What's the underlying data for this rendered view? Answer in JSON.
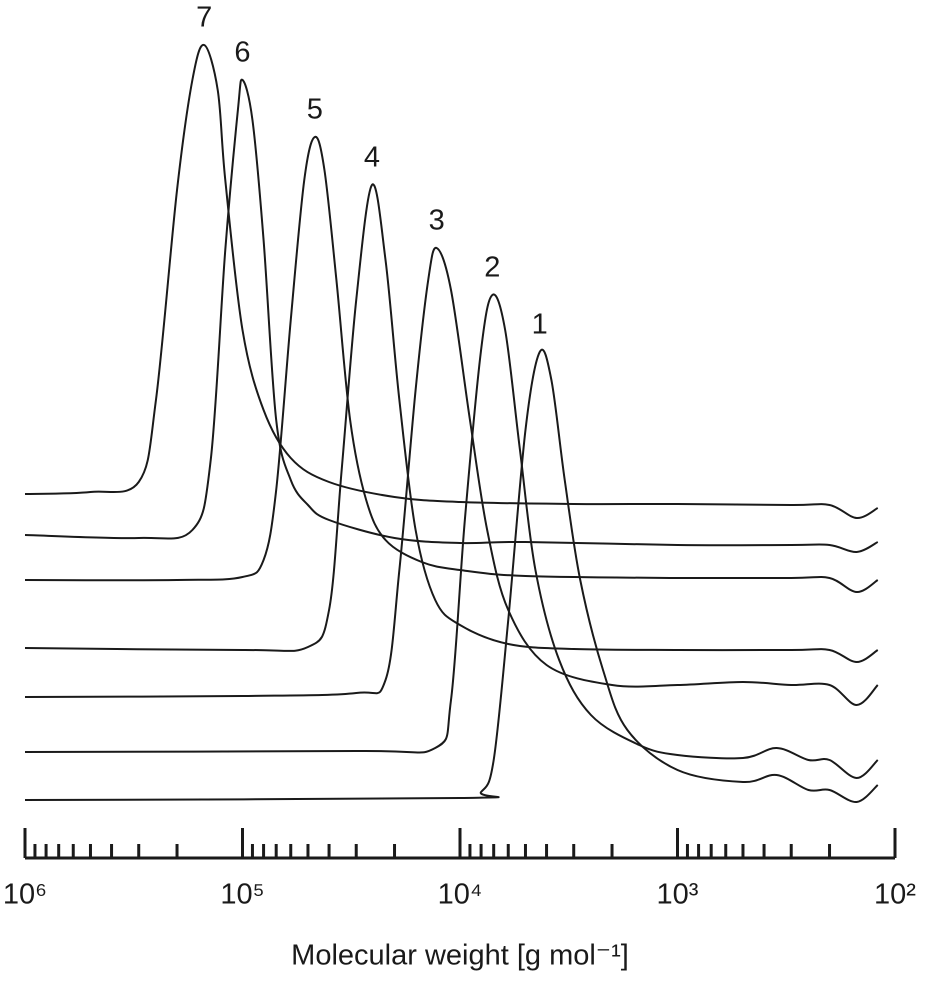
{
  "chart_data": {
    "type": "line",
    "x_label": "Molecular weight [g mol⁻¹]",
    "xscale": "log",
    "xlim": [
      1000000,
      100
    ],
    "xticks": [
      {
        "value": 1000000,
        "label": "10⁶"
      },
      {
        "value": 100000,
        "label": "10⁵"
      },
      {
        "value": 10000,
        "label": "10⁴"
      },
      {
        "value": 1000,
        "label": "10³"
      },
      {
        "value": 100,
        "label": "10²"
      }
    ],
    "x_minor_ticks": [
      900000,
      800000,
      700000,
      600000,
      500000,
      400000,
      300000,
      200000,
      90000,
      80000,
      70000,
      60000,
      50000,
      40000,
      30000,
      20000,
      9000,
      8000,
      7000,
      6000,
      5000,
      4000,
      3000,
      2000,
      900,
      800,
      700,
      600,
      500,
      400,
      300,
      200
    ],
    "ylim": [
      0,
      800
    ],
    "grid": false,
    "color": "#1a1a1a",
    "series": [
      {
        "name": "1",
        "x": [
          1000000,
          10000,
          8000,
          7000,
          6000,
          5000,
          4300,
          3800,
          3300,
          2800,
          2200,
          1700,
          1000,
          500,
          350,
          250,
          200,
          150,
          120
        ],
        "values": [
          20,
          22,
          28,
          60,
          200,
          390,
          468,
          440,
          340,
          240,
          150,
          90,
          50,
          38,
          45,
          30,
          30,
          18,
          35
        ]
      },
      {
        "name": "2",
        "x": [
          1000000,
          30000,
          13000,
          11000,
          9500,
          8000,
          7100,
          6200,
          5300,
          4500,
          3500,
          2500,
          1500,
          1000,
          500,
          350,
          250,
          200,
          150,
          120
        ],
        "values": [
          68,
          69,
          72,
          120,
          300,
          470,
          525,
          490,
          370,
          250,
          160,
          105,
          75,
          65,
          62,
          72,
          60,
          60,
          42,
          60
        ]
      },
      {
        "name": "3",
        "x": [
          1000000,
          100000,
          30000,
          22000,
          19000,
          16000,
          14000,
          12800,
          11000,
          9000,
          7500,
          6000,
          4000,
          2000,
          1000,
          500,
          300,
          200,
          150,
          120
        ],
        "values": [
          123,
          124,
          127,
          140,
          250,
          430,
          540,
          572,
          530,
          400,
          290,
          210,
          155,
          135,
          135,
          138,
          135,
          135,
          115,
          135
        ]
      },
      {
        "name": "4",
        "x": [
          1000000,
          100000,
          50000,
          40000,
          35000,
          30000,
          25400,
          22000,
          19000,
          16000,
          13000,
          10000,
          6000,
          3000,
          1000,
          300,
          200,
          150,
          120
        ],
        "values": [
          172,
          170,
          173,
          210,
          350,
          520,
          635,
          560,
          420,
          290,
          220,
          195,
          176,
          171,
          170,
          170,
          170,
          158,
          170
        ]
      },
      {
        "name": "5",
        "x": [
          1000000,
          200000,
          100000,
          80000,
          70000,
          60000,
          52000,
          46500,
          42000,
          37000,
          32000,
          27000,
          22000,
          15000,
          10000,
          5000,
          1000,
          300,
          200,
          150,
          120
        ],
        "values": [
          240,
          240,
          243,
          260,
          330,
          500,
          640,
          683,
          650,
          540,
          400,
          320,
          280,
          258,
          250,
          244,
          242,
          242,
          242,
          228,
          240
        ]
      },
      {
        "name": "6",
        "x": [
          1000000,
          300000,
          170000,
          140000,
          120000,
          105000,
          100000,
          90000,
          80000,
          70000,
          60000,
          50000,
          40000,
          20000,
          10000,
          5000,
          1000,
          300,
          200,
          150,
          120
        ],
        "values": [
          285,
          282,
          290,
          360,
          570,
          710,
          740,
          700,
          580,
          400,
          340,
          315,
          300,
          282,
          277,
          278,
          275,
          275,
          275,
          268,
          278
        ]
      },
      {
        "name": "7",
        "x": [
          1000000,
          500000,
          300000,
          250000,
          200000,
          170000,
          150000,
          130000,
          120000,
          100000,
          80000,
          60000,
          40000,
          20000,
          10000,
          3000,
          1000,
          300,
          200,
          150,
          120
        ],
        "values": [
          326,
          328,
          338,
          420,
          630,
          740,
          775,
          730,
          640,
          490,
          410,
          362,
          338,
          323,
          318,
          316,
          316,
          315,
          315,
          302,
          312
        ]
      }
    ]
  }
}
